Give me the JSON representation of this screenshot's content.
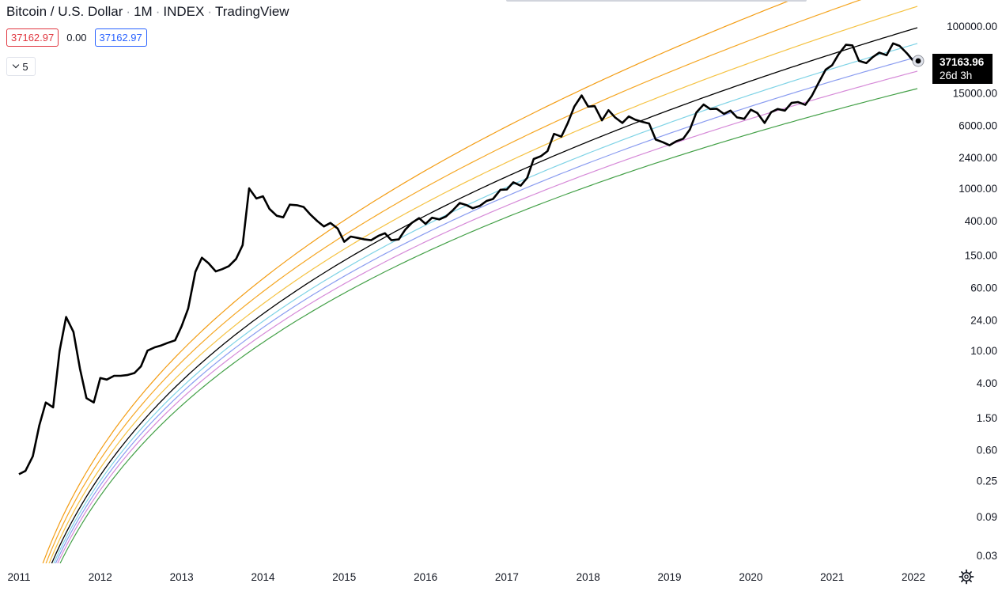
{
  "header": {
    "symbol": "Bitcoin / U.S. Dollar",
    "interval": "1M",
    "exchange": "INDEX",
    "platform": "TradingView",
    "separator": "·",
    "bid": "37162.97",
    "spread": "0.00",
    "ask": "37162.97",
    "collapse_count": "5"
  },
  "price_label": {
    "price": "37163.96",
    "countdown": "26d 3h"
  },
  "icons": {
    "settings": "gear-icon",
    "collapse": "chevron-down-icon"
  },
  "colors": {
    "price": "#000000",
    "band_1": "#f39c12",
    "band_2": "#f5a623",
    "band_3": "#f5c242",
    "band_4": "#000000",
    "band_5": "#7fd3e6",
    "band_6": "#8a9cf0",
    "band_7": "#d68ad8",
    "band_8": "#43a047",
    "bid": "#e0363f",
    "ask": "#2962ff"
  },
  "chart_data": {
    "type": "line",
    "title": "Bitcoin / U.S. Dollar · 1M · INDEX · TradingView",
    "y_scale": "log",
    "ylim": [
      0.02,
      160000
    ],
    "xlim": [
      2011.0,
      2022.12
    ],
    "x_ticks": [
      "2011",
      "2012",
      "2013",
      "2014",
      "2015",
      "2016",
      "2017",
      "2018",
      "2019",
      "2020",
      "2021",
      "2022"
    ],
    "y_ticks": [
      "100000.00",
      "15000.00",
      "6000.00",
      "2400.00",
      "1000.00",
      "400.00",
      "150.00",
      "60.00",
      "24.00",
      "10.00",
      "4.00",
      "1.50",
      "0.60",
      "0.25",
      "0.09",
      "0.03"
    ],
    "series": [
      {
        "x": [
          2011.0,
          2011.08,
          2011.17,
          2011.25,
          2011.33,
          2011.42,
          2011.5,
          2011.58,
          2011.67,
          2011.75,
          2011.83,
          2011.92,
          2012.0,
          2012.08,
          2012.17,
          2012.25,
          2012.33,
          2012.42,
          2012.5,
          2012.58,
          2012.67,
          2012.75,
          2012.83,
          2012.92,
          2013.0,
          2013.08,
          2013.17,
          2013.25,
          2013.33,
          2013.42,
          2013.5,
          2013.58,
          2013.67,
          2013.75,
          2013.83,
          2013.92,
          2014.0,
          2014.08,
          2014.17,
          2014.25,
          2014.33,
          2014.42,
          2014.5,
          2014.58,
          2014.67,
          2014.75,
          2014.83,
          2014.92,
          2015.0,
          2015.08,
          2015.17,
          2015.25,
          2015.33,
          2015.42,
          2015.5,
          2015.58,
          2015.67,
          2015.75,
          2015.83,
          2015.92,
          2016.0,
          2016.08,
          2016.17,
          2016.25,
          2016.33,
          2016.42,
          2016.5,
          2016.58,
          2016.67,
          2016.75,
          2016.83,
          2016.92,
          2017.0,
          2017.08,
          2017.17,
          2017.25,
          2017.33,
          2017.42,
          2017.5,
          2017.58,
          2017.67,
          2017.75,
          2017.83,
          2017.92,
          2018.0,
          2018.08,
          2018.17,
          2018.25,
          2018.33,
          2018.42,
          2018.5,
          2018.58,
          2018.67,
          2018.75,
          2018.83,
          2018.92,
          2019.0,
          2019.08,
          2019.17,
          2019.25,
          2019.33,
          2019.42,
          2019.5,
          2019.58,
          2019.67,
          2019.75,
          2019.83,
          2019.92,
          2020.0,
          2020.08,
          2020.17,
          2020.25,
          2020.33,
          2020.42,
          2020.5,
          2020.58,
          2020.67,
          2020.75,
          2020.83,
          2020.92,
          2021.0,
          2021.08,
          2021.17,
          2021.25,
          2021.33,
          2021.42,
          2021.5,
          2021.58,
          2021.67,
          2021.75,
          2021.83,
          2021.92,
          2022.0
        ],
        "values": [
          0.3,
          0.33,
          0.5,
          1.2,
          2.3,
          2.0,
          10,
          26,
          17,
          6,
          2.6,
          2.3,
          4.6,
          4.4,
          4.9,
          4.9,
          5.0,
          5.3,
          6.4,
          10,
          11,
          11.6,
          12.5,
          13.4,
          20,
          33,
          94,
          140,
          120,
          95,
          101,
          110,
          135,
          200,
          1000,
          750,
          800,
          560,
          460,
          440,
          630,
          620,
          590,
          480,
          395,
          340,
          375,
          320,
          220,
          255,
          245,
          235,
          230,
          260,
          280,
          230,
          235,
          310,
          375,
          430,
          365,
          435,
          415,
          450,
          530,
          660,
          625,
          570,
          610,
          700,
          740,
          960,
          970,
          1190,
          1080,
          1350,
          2300,
          2500,
          2880,
          4700,
          4340,
          6400,
          10200,
          14000,
          10200,
          10300,
          6900,
          9200,
          7500,
          6400,
          7700,
          7000,
          6600,
          6300,
          4000,
          3700,
          3400,
          3800,
          4100,
          5300,
          8600,
          10800,
          9500,
          9600,
          8300,
          9100,
          7500,
          7200,
          9350,
          8500,
          6400,
          8700,
          9500,
          9100,
          11300,
          11600,
          10700,
          13800,
          19700,
          29000,
          33000,
          45000,
          58900,
          57800,
          37300,
          35000,
          41500,
          47100,
          43800,
          61300,
          57000,
          46200,
          37163.96
        ]
      }
    ]
  }
}
